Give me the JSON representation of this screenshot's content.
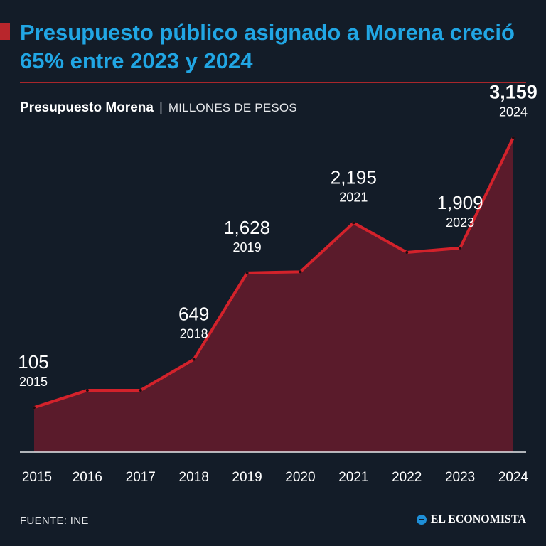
{
  "header": {
    "title": "Presupuesto público asignado a Morena creció 65% entre 2023 y 2024",
    "subtitle_main": "Presupuesto Morena",
    "subtitle_sep": "|",
    "subtitle_units": "MILLONES DE PESOS"
  },
  "colors": {
    "background": "#131c28",
    "title": "#21a6e4",
    "accent": "#b8262c",
    "area_fill": "#5a1b2b",
    "line": "#d3222b"
  },
  "chart_data": {
    "type": "area",
    "title": "Presupuesto Morena",
    "ylabel": "MILLONES DE PESOS",
    "xlabel": "",
    "x": [
      "2015",
      "2016",
      "2017",
      "2018",
      "2019",
      "2020",
      "2021",
      "2022",
      "2023",
      "2024"
    ],
    "values": [
      105,
      300,
      300,
      649,
      1628,
      1640,
      2195,
      1860,
      1909,
      3159
    ],
    "ylim": [
      -400,
      3750
    ],
    "grid": false,
    "annotations": [
      {
        "index": 0,
        "value_label": "105",
        "year_label": "2015",
        "bold": false
      },
      {
        "index": 3,
        "value_label": "649",
        "year_label": "2018",
        "bold": false
      },
      {
        "index": 4,
        "value_label": "1,628",
        "year_label": "2019",
        "bold": false
      },
      {
        "index": 6,
        "value_label": "2,195",
        "year_label": "2021",
        "bold": false
      },
      {
        "index": 8,
        "value_label": "1,909",
        "year_label": "2023",
        "bold": false
      },
      {
        "index": 9,
        "value_label": "3,159",
        "year_label": "2024",
        "bold": true
      }
    ]
  },
  "footer": {
    "source": "FUENTE: INE",
    "brand": "EL ECONOMISTA"
  }
}
